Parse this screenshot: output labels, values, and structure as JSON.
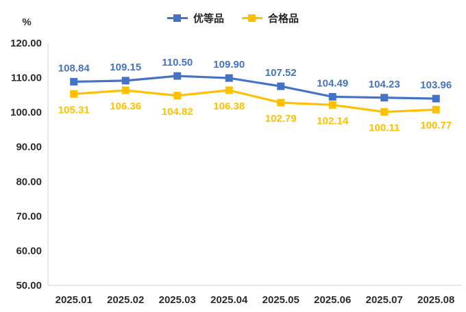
{
  "chart_data": {
    "type": "line",
    "title": "",
    "unit_label": "%",
    "categories": [
      "2025.01",
      "2025.02",
      "2025.03",
      "2025.04",
      "2025.05",
      "2025.06",
      "2025.07",
      "2025.08"
    ],
    "series": [
      {
        "name": "优等品",
        "color": "#4472C4",
        "label_position": "above",
        "values": [
          108.84,
          109.15,
          110.5,
          109.9,
          107.52,
          104.49,
          104.23,
          103.96
        ]
      },
      {
        "name": "合格品",
        "color": "#FFC000",
        "label_position": "below",
        "values": [
          105.31,
          106.36,
          104.82,
          106.38,
          102.79,
          102.14,
          100.11,
          100.77
        ]
      }
    ],
    "y_axis": {
      "min": 50,
      "max": 120,
      "step": 10,
      "tick_labels": [
        "50.00",
        "60.00",
        "70.00",
        "80.00",
        "90.00",
        "100.00",
        "110.00",
        "120.00"
      ]
    },
    "x_axis": {
      "label": ""
    },
    "grid": "off",
    "legend_position": "top-center",
    "axis_line_color": "#d0d0d0",
    "tick_label_color": "#2b2b2b"
  }
}
